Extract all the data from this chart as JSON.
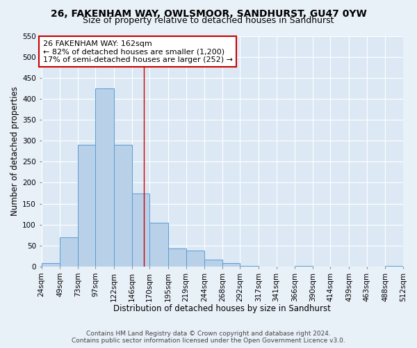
{
  "title": "26, FAKENHAM WAY, OWLSMOOR, SANDHURST, GU47 0YW",
  "subtitle": "Size of property relative to detached houses in Sandhurst",
  "xlabel": "Distribution of detached houses by size in Sandhurst",
  "ylabel": "Number of detached properties",
  "bin_edges": [
    24,
    49,
    73,
    97,
    122,
    146,
    170,
    195,
    219,
    244,
    268,
    292,
    317,
    341,
    366,
    390,
    414,
    439,
    463,
    488,
    512
  ],
  "bar_heights": [
    8,
    70,
    290,
    425,
    290,
    175,
    105,
    43,
    38,
    17,
    8,
    1,
    0,
    0,
    1,
    0,
    0,
    0,
    0,
    1
  ],
  "bar_color": "#b8d0e8",
  "bar_edge_color": "#5b9bd5",
  "vline_x": 162,
  "vline_color": "#cc0000",
  "annotation_line1": "26 FAKENHAM WAY: 162sqm",
  "annotation_line2": "← 82% of detached houses are smaller (1,200)",
  "annotation_line3": "17% of semi-detached houses are larger (252) →",
  "annotation_box_edge_color": "#cc0000",
  "ylim": [
    0,
    550
  ],
  "yticks": [
    0,
    50,
    100,
    150,
    200,
    250,
    300,
    350,
    400,
    450,
    500,
    550
  ],
  "tick_labels": [
    "24sqm",
    "49sqm",
    "73sqm",
    "97sqm",
    "122sqm",
    "146sqm",
    "170sqm",
    "195sqm",
    "219sqm",
    "244sqm",
    "268sqm",
    "292sqm",
    "317sqm",
    "341sqm",
    "366sqm",
    "390sqm",
    "414sqm",
    "439sqm",
    "463sqm",
    "488sqm",
    "512sqm"
  ],
  "footer1": "Contains HM Land Registry data © Crown copyright and database right 2024.",
  "footer2": "Contains public sector information licensed under the Open Government Licence v3.0.",
  "background_color": "#e8f0f8",
  "plot_background_color": "#dce9f5",
  "grid_color": "#ffffff",
  "title_fontsize": 10,
  "subtitle_fontsize": 9,
  "axis_label_fontsize": 8.5,
  "tick_fontsize": 7.5,
  "footer_fontsize": 6.5,
  "annotation_fontsize": 8
}
